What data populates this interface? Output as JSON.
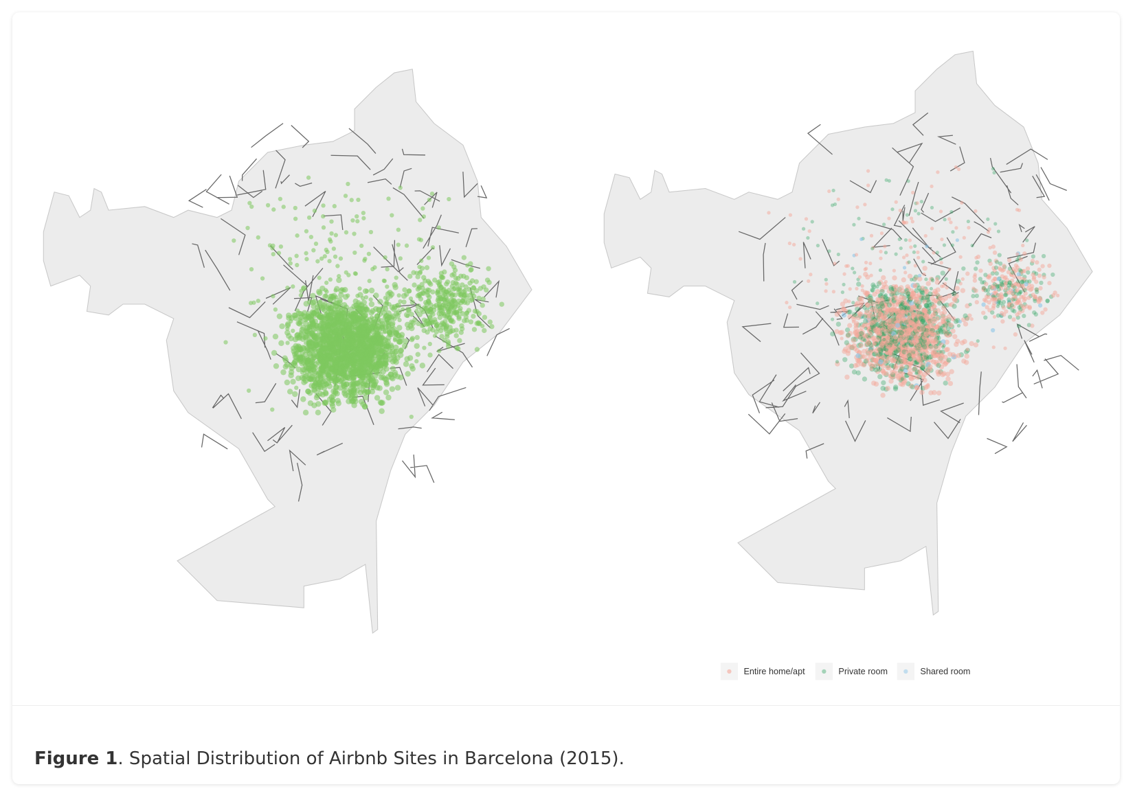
{
  "figure": {
    "label": "Figure 1",
    "caption": ". Spatial Distribution of Airbnb Sites in Barcelona (2015).",
    "legend": [
      "Entire home/apt",
      "Private room",
      "Shared room"
    ]
  }
}
